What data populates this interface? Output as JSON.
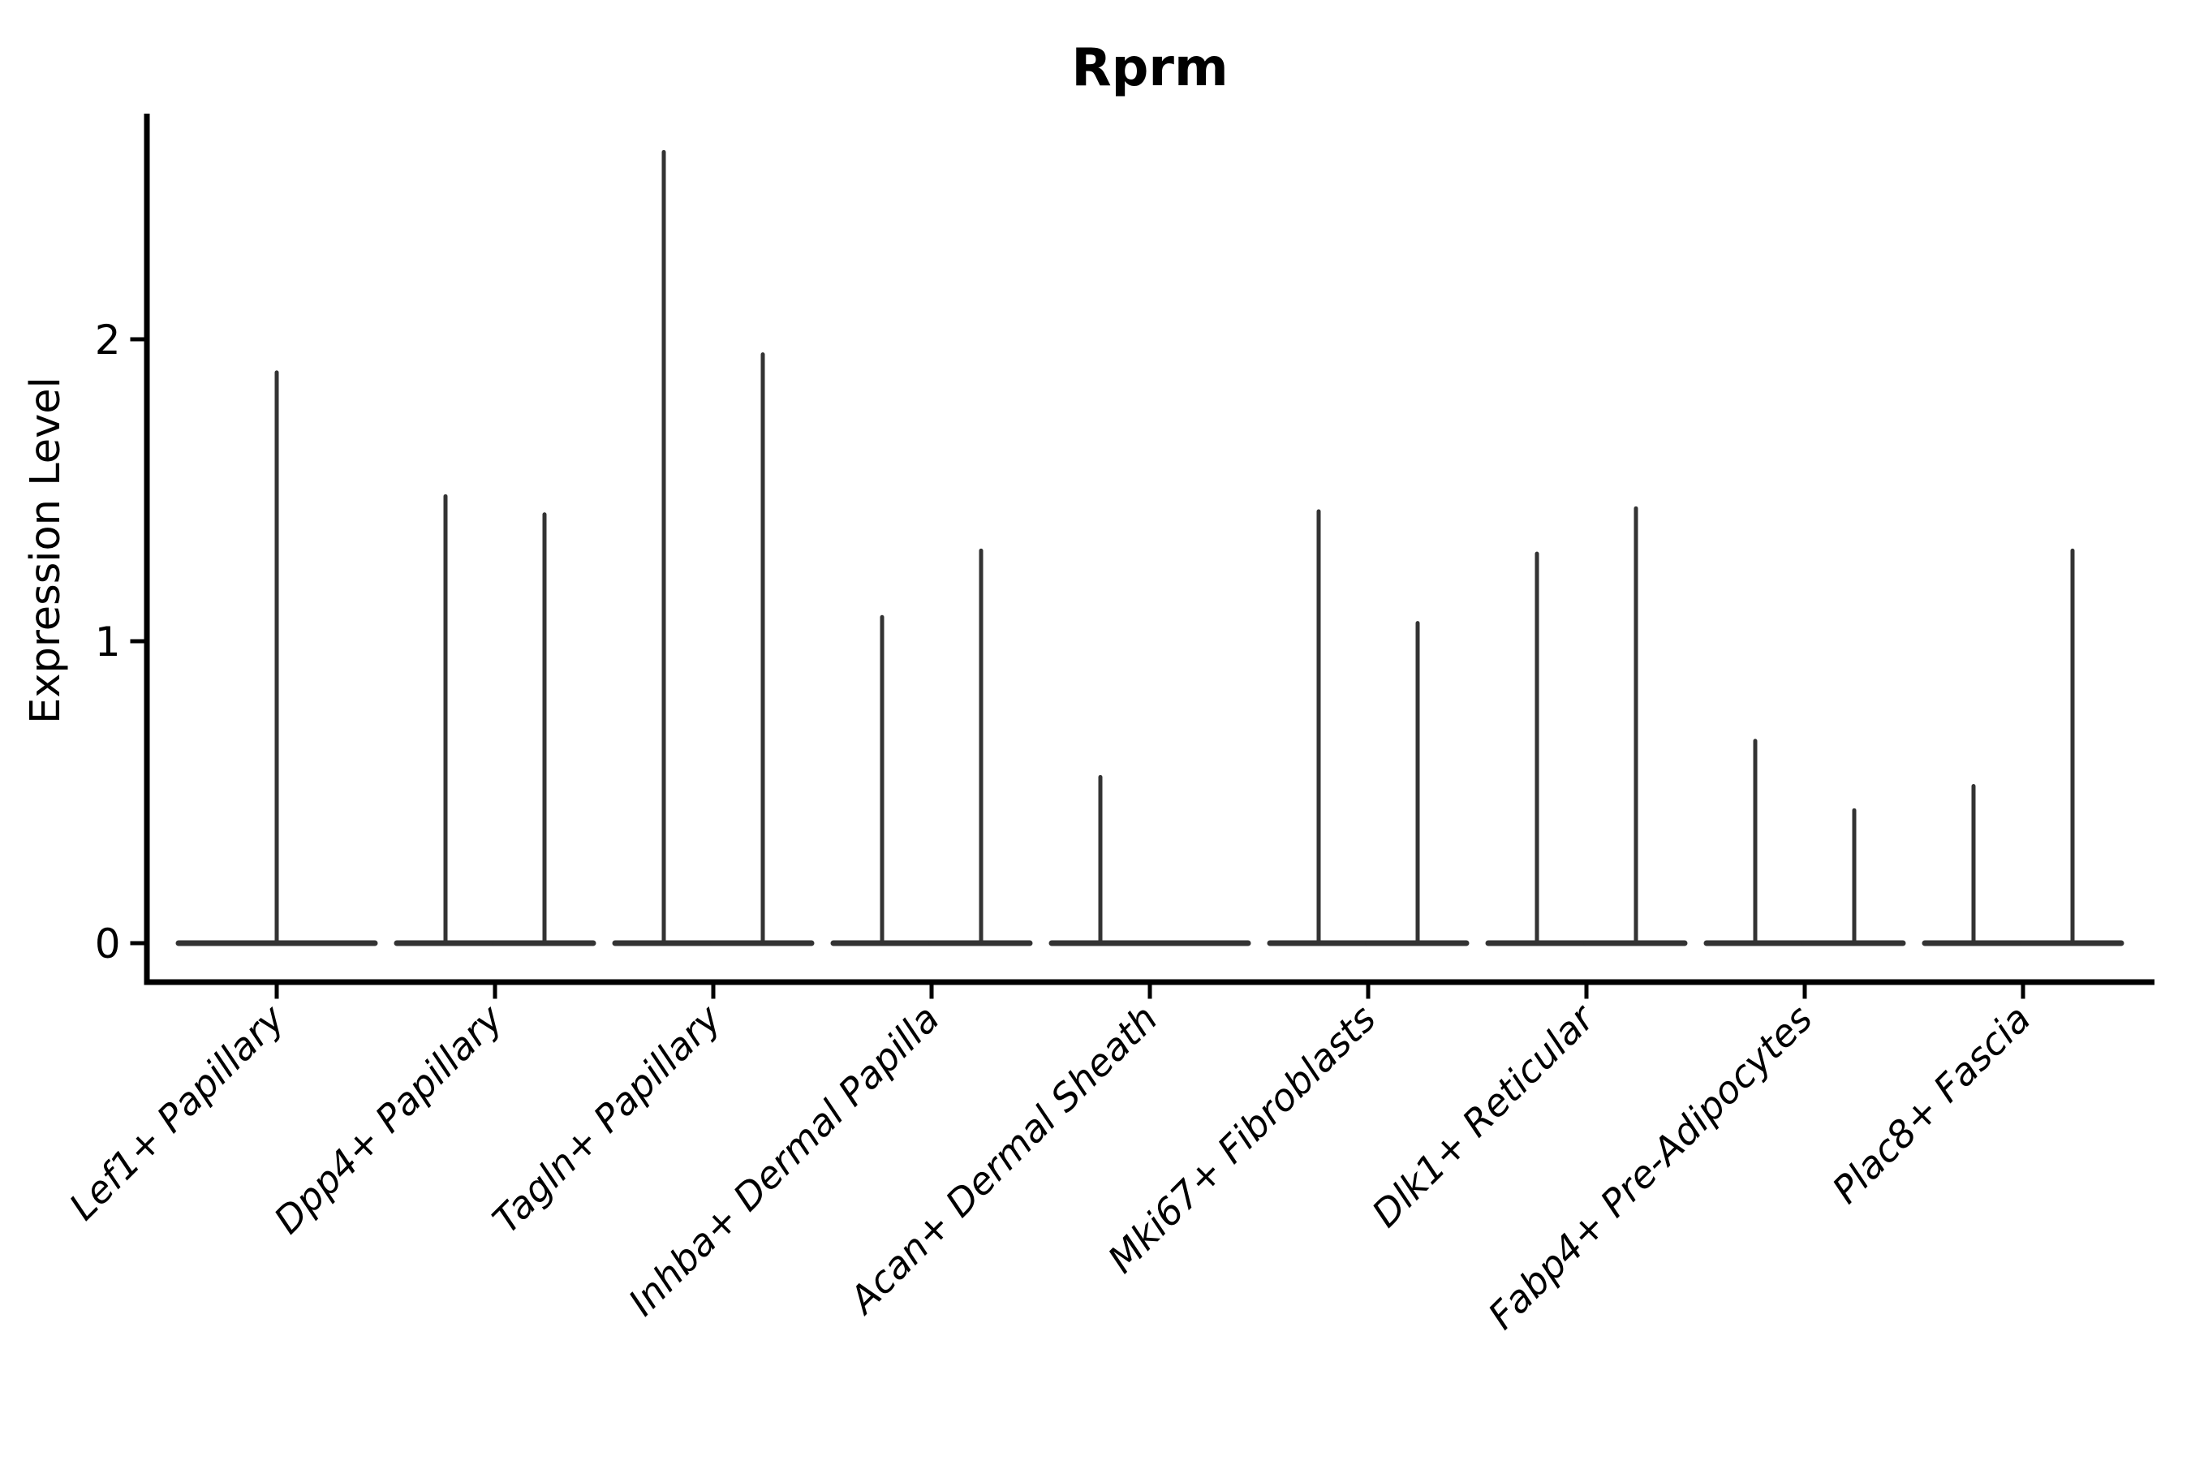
{
  "chart_data": {
    "type": "violin",
    "title": "Rprm",
    "ylabel": "Expression Level",
    "xlabel": "",
    "yticks": [
      0,
      1,
      2
    ],
    "ylim": [
      -0.13,
      2.75
    ],
    "grid": false,
    "legend": null,
    "colors": {
      "violin_line": "#333333",
      "axis_line": "#000000",
      "text": "#000000",
      "background": "#ffffff"
    },
    "categories": [
      {
        "label": "Lef1+ Papillary",
        "violins": [
          {
            "pos": "center",
            "max": 1.89
          }
        ]
      },
      {
        "label": "Dpp4+ Papillary",
        "violins": [
          {
            "pos": "left",
            "max": 1.48
          },
          {
            "pos": "right",
            "max": 1.42
          }
        ]
      },
      {
        "label": "Tagln+ Papillary",
        "violins": [
          {
            "pos": "left",
            "max": 2.62
          },
          {
            "pos": "right",
            "max": 1.95
          }
        ]
      },
      {
        "label": "Inhba+ Dermal Papilla",
        "violins": [
          {
            "pos": "left",
            "max": 1.08
          },
          {
            "pos": "right",
            "max": 1.3
          }
        ]
      },
      {
        "label": "Acan+ Dermal Sheath",
        "violins": [
          {
            "pos": "left",
            "max": 0.55
          },
          {
            "pos": "right",
            "max": 0
          }
        ]
      },
      {
        "label": "Mki67+ Fibroblasts",
        "violins": [
          {
            "pos": "left",
            "max": 1.43
          },
          {
            "pos": "right",
            "max": 1.06
          }
        ]
      },
      {
        "label": "Dlk1+ Reticular",
        "violins": [
          {
            "pos": "left",
            "max": 1.29
          },
          {
            "pos": "right",
            "max": 1.44
          }
        ]
      },
      {
        "label": "Fabp4+ Pre-Adipocytes",
        "violins": [
          {
            "pos": "left",
            "max": 0.67
          },
          {
            "pos": "right",
            "max": 0.44
          }
        ]
      },
      {
        "label": "Plac8+ Fascia",
        "violins": [
          {
            "pos": "left",
            "max": 0.52
          },
          {
            "pos": "right",
            "max": 1.3
          }
        ]
      }
    ]
  }
}
